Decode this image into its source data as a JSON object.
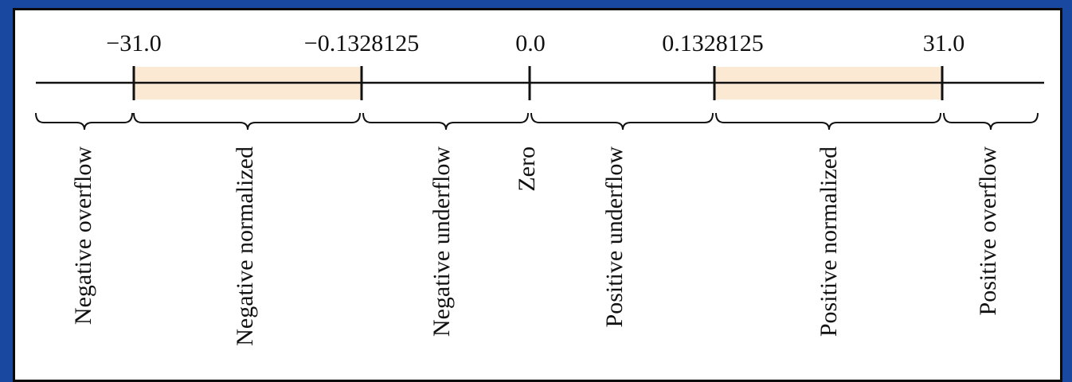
{
  "colors": {
    "frame": "#1848a0",
    "panel": "#ffffff",
    "highlight": "#fce9d4",
    "ink": "#111111"
  },
  "ticks": [
    {
      "id": "neg-max",
      "label": "−31.0"
    },
    {
      "id": "neg-min",
      "label": "−0.1328125"
    },
    {
      "id": "zero",
      "label": "0.0"
    },
    {
      "id": "pos-min",
      "label": "0.1328125"
    },
    {
      "id": "pos-max",
      "label": "31.0"
    }
  ],
  "regions": [
    {
      "id": "negative-overflow",
      "label": "Negative overflow",
      "highlighted": false
    },
    {
      "id": "negative-normalized",
      "label": "Negative normalized",
      "highlighted": true
    },
    {
      "id": "negative-underflow",
      "label": "Negative underflow",
      "highlighted": false
    },
    {
      "id": "zero",
      "label": "Zero",
      "highlighted": false
    },
    {
      "id": "positive-underflow",
      "label": "Positive underflow",
      "highlighted": false
    },
    {
      "id": "positive-normalized",
      "label": "Positive normalized",
      "highlighted": true
    },
    {
      "id": "positive-overflow",
      "label": "Positive overflow",
      "highlighted": false
    }
  ]
}
